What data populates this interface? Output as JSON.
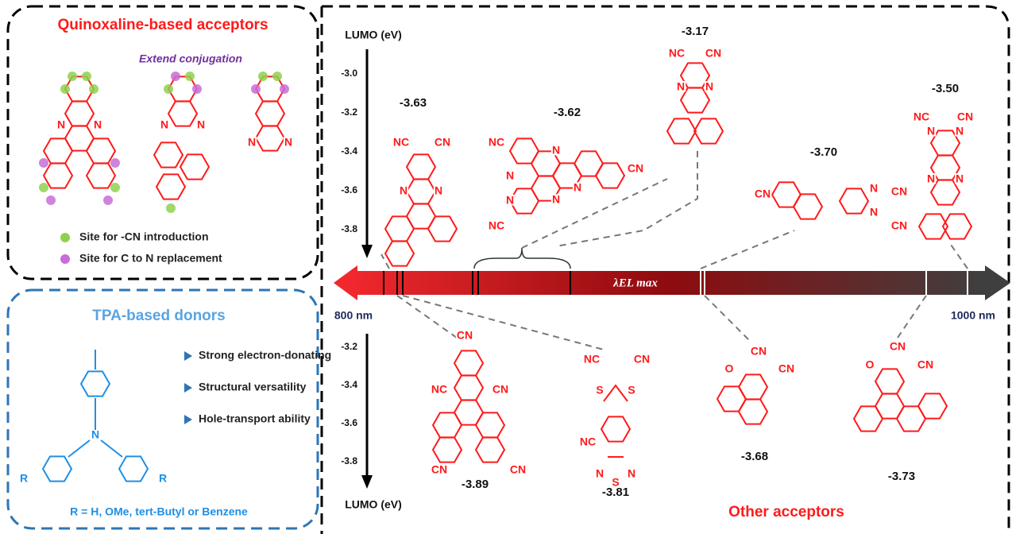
{
  "quinoxaline_panel": {
    "title": "Quinoxaline-based acceptors",
    "note": "Extend conjugation",
    "legend": [
      "Site for -CN introduction",
      "Site for C to N replacement"
    ],
    "molecules": [
      {
        "atoms": [
          "N",
          "N"
        ]
      },
      {
        "atoms": [
          "N",
          "N"
        ]
      },
      {
        "atoms": [
          "N",
          "N"
        ]
      }
    ]
  },
  "donor_panel": {
    "title": "TPA-based donors",
    "features": [
      "Strong electron-donating",
      "Structural versatility",
      "Hole-transport ability"
    ],
    "r_definition": "R = H, OMe, tert-Butyl  or Benzene",
    "atoms": [
      "N",
      "R",
      "R"
    ]
  },
  "axes": {
    "top_label": "LUMO (eV)",
    "bottom_label": "LUMO (eV)",
    "top_ticks": [
      "-3.0",
      "-3.2",
      "-3.4",
      "-3.6",
      "-3.8"
    ],
    "bottom_ticks": [
      "-3.2",
      "-3.4",
      "-3.6",
      "-3.8"
    ]
  },
  "wavelength_bar": {
    "label": "λEL max",
    "left": "800 nm",
    "right": "1000 nm"
  },
  "top_acceptors": [
    {
      "lumo": "-3.63",
      "atoms": [
        "NC",
        "CN",
        "N",
        "N"
      ]
    },
    {
      "lumo": "-3.62",
      "atoms": [
        "NC",
        "N",
        "N",
        "N",
        "N",
        "CN",
        "N",
        "NC"
      ]
    },
    {
      "lumo": "-3.17",
      "atoms": [
        "NC",
        "CN",
        "N",
        "N"
      ]
    },
    {
      "lumo": "-3.70",
      "atoms": [
        "CN",
        "N",
        "N",
        "CN",
        "CN"
      ]
    },
    {
      "lumo": "-3.50",
      "atoms": [
        "NC",
        "CN",
        "N",
        "N",
        "N",
        "N"
      ]
    }
  ],
  "bottom_acceptors": [
    {
      "lumo": "-3.89",
      "atoms": [
        "CN",
        "NC",
        "CN",
        "CN",
        "CN"
      ]
    },
    {
      "lumo": "-3.81",
      "atoms": [
        "NC",
        "CN",
        "S",
        "S",
        "NC",
        "N",
        "S",
        "N"
      ]
    },
    {
      "lumo": "-3.68",
      "atoms": [
        "CN",
        "O",
        "CN"
      ]
    },
    {
      "lumo": "-3.73",
      "atoms": [
        "CN",
        "O",
        "CN"
      ]
    }
  ],
  "other_label": "Other acceptors"
}
